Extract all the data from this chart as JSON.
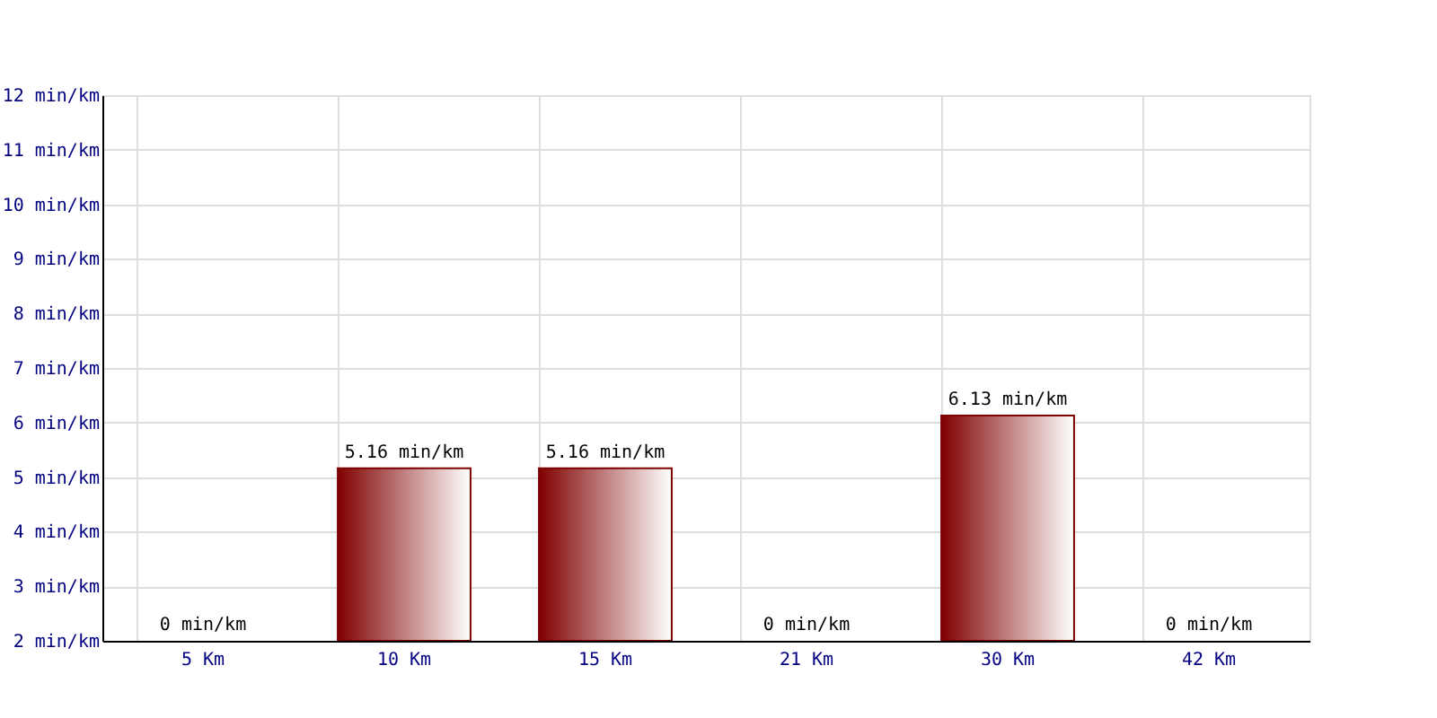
{
  "chart_data": {
    "type": "bar",
    "categories": [
      "5 Km",
      "10 Km",
      "15 Km",
      "21 Km",
      "30 Km",
      "42 Km"
    ],
    "values": [
      null,
      5.16,
      5.16,
      null,
      6.13,
      null
    ],
    "value_labels": [
      "0 min/km",
      "5.16 min/km",
      "5.16 min/km",
      "0 min/km",
      "6.13 min/km",
      "0 min/km"
    ],
    "color": "#800000",
    "ylim": [
      2,
      12
    ],
    "yticks": [
      {
        "value": 2,
        "label": "2 min/km"
      },
      {
        "value": 3,
        "label": "3 min/km"
      },
      {
        "value": 4,
        "label": "4 min/km"
      },
      {
        "value": 5,
        "label": "5 min/km"
      },
      {
        "value": 6,
        "label": "6 min/km"
      },
      {
        "value": 7,
        "label": "7 min/km"
      },
      {
        "value": 8,
        "label": "8 min/km"
      },
      {
        "value": 9,
        "label": "9 min/km"
      },
      {
        "value": 10,
        "label": "10 min/km"
      },
      {
        "value": 11,
        "label": "11 min/km"
      },
      {
        "value": 12,
        "label": "12 min/km"
      }
    ],
    "grid": true
  }
}
